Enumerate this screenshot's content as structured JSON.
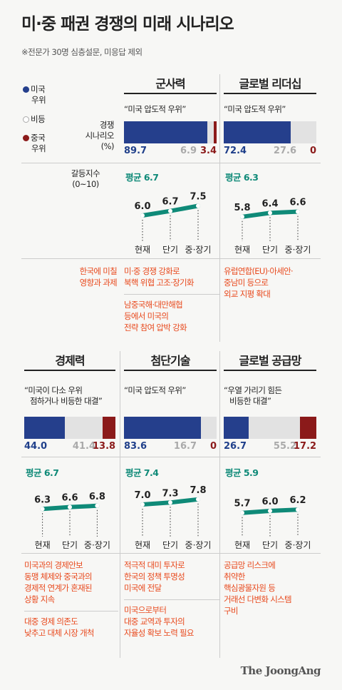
{
  "title": "미·중 패권 경쟁의 미래 시나리오",
  "note": "※전문가 30명 심층설문, 미응답 제외",
  "legend": {
    "us_line1": "미국",
    "us_line2": "우위",
    "tie": "비등",
    "cn_line1": "중국",
    "cn_line2": "우위",
    "scenario_line1": "경쟁",
    "scenario_line2": "시나리오",
    "scenario_line3": "(%)",
    "conflict_line1": "갈등지수",
    "conflict_line2": "(0~10)",
    "impact_line1": "한국에 미칠",
    "impact_line2": "영향과 과제"
  },
  "colors": {
    "us": "#253f8c",
    "tie": "#e2e2e2",
    "cn": "#8b1a1a",
    "accent": "#0f8a78",
    "impact": "#e84a1e"
  },
  "x_labels": [
    "현재",
    "단기",
    "중·장기"
  ],
  "chart_data": [
    {
      "type": "bar",
      "title": "군사력",
      "quote": [
        "“미국 압도적 우위”"
      ],
      "shares": [
        89.7,
        6.9,
        3.4
      ],
      "share_labels": [
        "89.7",
        "6.9",
        "3.4"
      ],
      "avg_label": "평균 6.7",
      "conflict": [
        6.0,
        6.7,
        7.5
      ],
      "conflict_labels": [
        "6.0",
        "6.7",
        "7.5"
      ],
      "impact": [
        [
          "미·중 경쟁 강화로",
          "북핵 위협 고조·장기화"
        ],
        [
          "남중국해·대만해협",
          "등에서 미국의",
          "전략 참여 압박 강화"
        ]
      ]
    },
    {
      "type": "bar",
      "title": "글로벌 리더십",
      "quote": [
        "“미국 압도적 우위”"
      ],
      "shares": [
        72.4,
        27.6,
        0
      ],
      "share_labels": [
        "72.4",
        "27.6",
        "0"
      ],
      "avg_label": "평균 6.3",
      "conflict": [
        5.8,
        6.4,
        6.6
      ],
      "conflict_labels": [
        "5.8",
        "6.4",
        "6.6"
      ],
      "impact": [
        [
          "유럽연합(EU)·아세안·",
          "중남미 등으로",
          "외교 지평 확대"
        ]
      ]
    },
    {
      "type": "bar",
      "title": "경제력",
      "quote": [
        "“미국이 다소 우위",
        "점하거나 비등한 대결”"
      ],
      "shares": [
        44.0,
        41.4,
        13.8
      ],
      "share_labels": [
        "44.0",
        "41.4",
        "13.8"
      ],
      "avg_label": "평균 6.7",
      "conflict": [
        6.3,
        6.6,
        6.8
      ],
      "conflict_labels": [
        "6.3",
        "6.6",
        "6.8"
      ],
      "impact": [
        [
          "미국과의 경제안보",
          "동맹 체제와 중국과의",
          "경제적 연계가 혼재된",
          "상황 지속"
        ],
        [
          "대중 경제 의존도",
          "낮추고 대체 시장 개척"
        ]
      ]
    },
    {
      "type": "bar",
      "title": "첨단기술",
      "quote": [
        "“미국 압도적 우위”"
      ],
      "shares": [
        83.6,
        16.7,
        0
      ],
      "share_labels": [
        "83.6",
        "16.7",
        "0"
      ],
      "avg_label": "평균 7.4",
      "conflict": [
        7.0,
        7.3,
        7.8
      ],
      "conflict_labels": [
        "7.0",
        "7.3",
        "7.8"
      ],
      "impact": [
        [
          "적극적 대미 투자로",
          "한국의 정책 투명성",
          "미국에 전달"
        ],
        [
          "미국으로부터",
          "대중 교역과 투자의",
          "자율성 확보 노력 필요"
        ]
      ]
    },
    {
      "type": "bar",
      "title": "글로벌 공급망",
      "quote": [
        "“우열 가리기 힘든",
        "비등한 대결”"
      ],
      "shares": [
        26.7,
        55.2,
        17.2
      ],
      "share_labels": [
        "26.7",
        "55.2",
        "17.2"
      ],
      "avg_label": "평균 5.9",
      "conflict": [
        5.7,
        6.0,
        6.2
      ],
      "conflict_labels": [
        "5.7",
        "6.0",
        "6.2"
      ],
      "impact": [
        [
          "공급망 리스크에",
          "취약한",
          "핵심광물자원 등",
          "거래선 다변화 시스템",
          "구비"
        ]
      ]
    }
  ],
  "logo": "The JoongAng"
}
